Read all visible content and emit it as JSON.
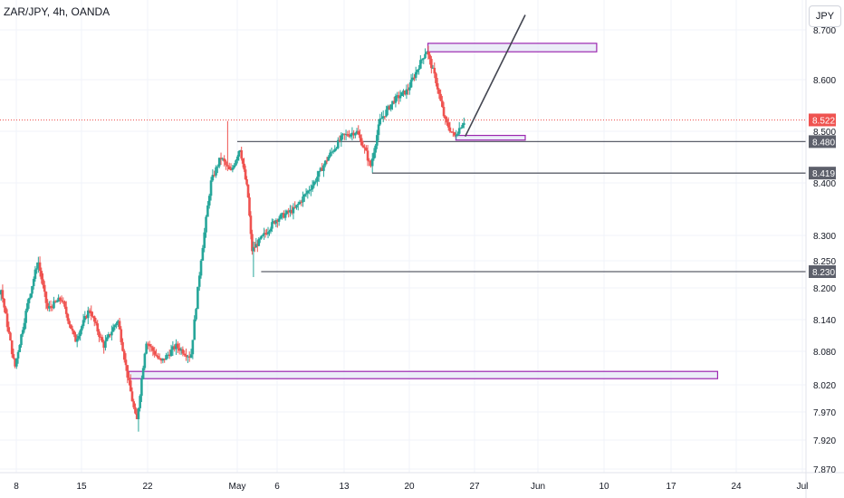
{
  "header": {
    "symbol_title": "ZAR/JPY, 4h, OANDA",
    "currency_button": "JPY"
  },
  "chart_data": {
    "type": "candlestick",
    "title": "ZAR/JPY, 4h, OANDA",
    "ylim": [
      7.85,
      8.715
    ],
    "y_ticks": [
      "8.700",
      "8.600",
      "8.500",
      "8.400",
      "8.300",
      "8.250",
      "8.200",
      "8.140",
      "8.080",
      "8.020",
      "7.970",
      "7.920",
      "7.870"
    ],
    "x_ticks": [
      "8",
      "15",
      "22",
      "May",
      "6",
      "13",
      "20",
      "27",
      "Jun",
      "10",
      "17",
      "24",
      "Jul"
    ],
    "current_price": {
      "label": "8.522",
      "value": 8.522
    },
    "price_labels": [
      {
        "label": "8.480",
        "value": 8.48
      },
      {
        "label": "8.419",
        "value": 8.419
      },
      {
        "label": "8.230",
        "value": 8.23
      }
    ],
    "horizontal_levels": [
      {
        "value": 8.48,
        "from_date": "May 1",
        "to_date": "Jul"
      },
      {
        "value": 8.419,
        "from_date": "May 16",
        "to_date": "Jul"
      },
      {
        "value": 8.23,
        "from_date": "May 4",
        "to_date": "Jul"
      }
    ],
    "zones": [
      {
        "low": 8.656,
        "high": 8.673,
        "from_date": "May 22",
        "to_date": "Jun 9"
      },
      {
        "low": 8.483,
        "high": 8.492,
        "from_date": "May 25",
        "to_date": "May 31"
      },
      {
        "low": 8.031,
        "high": 8.044,
        "from_date": "Apr 20",
        "to_date": "Jun 22"
      }
    ],
    "projection_line": {
      "from": {
        "date": "May 26",
        "price": 8.49
      },
      "to": {
        "date": "May 31",
        "price": 8.73
      }
    },
    "key_swings": [
      {
        "date": "Apr 20",
        "low": 7.935
      },
      {
        "date": "Apr 30",
        "high": 8.52
      },
      {
        "date": "May 2",
        "low": 8.22
      },
      {
        "date": "May 16",
        "low": 8.42
      },
      {
        "date": "May 22",
        "high": 8.668
      },
      {
        "date": "May 25",
        "low": 8.485
      },
      {
        "date": "May 26",
        "close": 8.522
      }
    ],
    "colors": {
      "up": "#26a69a",
      "down": "#ef5350",
      "zone_border": "#9c27b0",
      "zone_fill": "#e3e5f5",
      "level_line": "#5d606b",
      "current_price_bg": "#ef5350",
      "level_label_bg": "#5d606b"
    }
  }
}
